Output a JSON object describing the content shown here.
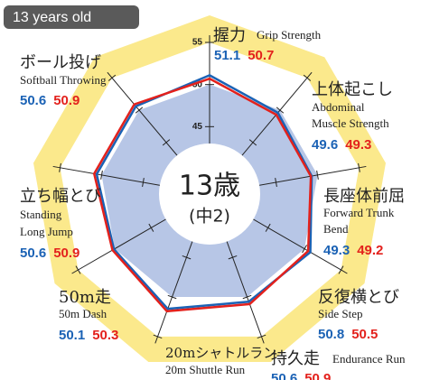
{
  "chart_data": {
    "type": "radar",
    "badge": "13 years old",
    "center_title": "13歳",
    "center_subtitle": "(中2)",
    "categories": [
      "握力",
      "上体起こし",
      "長座体前屈",
      "反復横とび",
      "持久走",
      "20mシャトルラン",
      "50m走",
      "立ち幅とび",
      "ボール投げ"
    ],
    "categories_en": [
      [
        "Grip Strength"
      ],
      [
        "Abdominal",
        "Muscle Strength"
      ],
      [
        "Forward Trunk",
        "Bend"
      ],
      [
        "Side Step"
      ],
      [
        "Endurance Run"
      ],
      [
        "20m Shuttle Run"
      ],
      [
        "50m Dash"
      ],
      [
        "Standing",
        "Long Jump"
      ],
      [
        "Softball Throwing"
      ]
    ],
    "ylim": [
      37,
      55
    ],
    "yticks": [
      45,
      50,
      55
    ],
    "series": [
      {
        "color": "#1b62b5",
        "values": [
          51.1,
          49.6,
          49.3,
          50.8,
          50.6,
          51.5,
          50.1,
          50.6,
          50.6
        ],
        "value_labels": [
          "51.1",
          "49.6",
          "49.3",
          "50.8",
          "50.6",
          null,
          "50.1",
          "50.6",
          "50.6"
        ]
      },
      {
        "color": "#e3211c",
        "values": [
          50.7,
          49.3,
          49.2,
          50.5,
          50.9,
          51.8,
          50.3,
          50.9,
          50.9
        ],
        "value_labels": [
          "50.7",
          "49.3",
          "49.2",
          "50.5",
          "50.9",
          null,
          "50.3",
          "50.9",
          "50.9"
        ]
      }
    ]
  }
}
